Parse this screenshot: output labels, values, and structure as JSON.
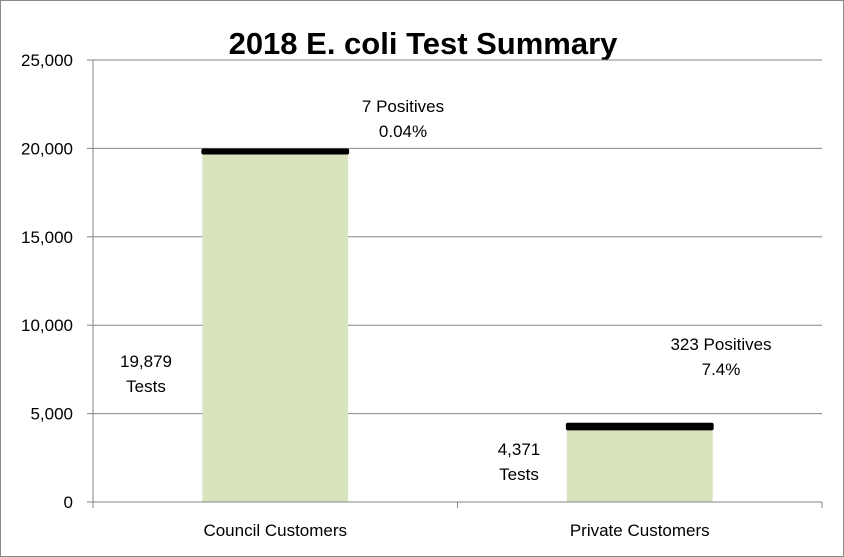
{
  "chart_data": {
    "type": "bar",
    "title": "2018 E. coli Test Summary",
    "xlabel": "",
    "ylabel": "",
    "ylim": [
      0,
      25000
    ],
    "yticks": [
      "0",
      "5,000",
      "10,000",
      "15,000",
      "20,000",
      "25,000"
    ],
    "ytick_values": [
      0,
      5000,
      10000,
      15000,
      20000,
      25000
    ],
    "grid": true,
    "legend": "none",
    "categories": [
      "Council Customers",
      "Private Customers"
    ],
    "series": [
      {
        "values": [
          19879,
          4371
        ]
      },
      {
        "values": [
          7,
          323
        ]
      }
    ],
    "colors": {
      "bar": "#d7e4bd",
      "positives_marker": "#000000",
      "grid": "#868686"
    },
    "annotations": {
      "council": {
        "tests_value": "19,879",
        "tests_word": "Tests",
        "positives": "7 Positives",
        "percent": "0.04%"
      },
      "private": {
        "tests_value": "4,371",
        "tests_word": "Tests",
        "positives": "323 Positives",
        "percent": "7.4%"
      }
    }
  }
}
